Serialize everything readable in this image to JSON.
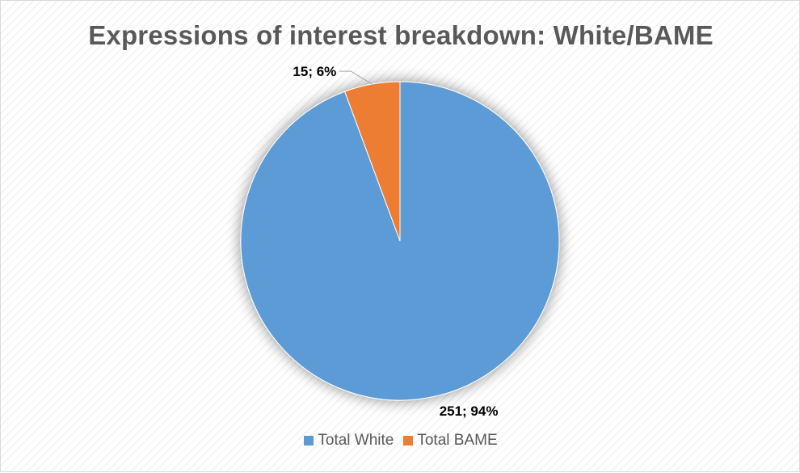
{
  "chart_data": {
    "type": "pie",
    "title": "Expressions of interest breakdown: White/BAME",
    "categories": [
      "Total White",
      "Total BAME"
    ],
    "values": [
      251,
      15
    ],
    "percents": [
      94,
      6
    ],
    "data_labels": [
      "251; 94%",
      "15; 6%"
    ],
    "colors": [
      "#5b9bd5",
      "#ed7d31"
    ],
    "legend_position": "bottom",
    "start_angle": "12 o'clock",
    "direction": "clockwise",
    "grid": false
  }
}
